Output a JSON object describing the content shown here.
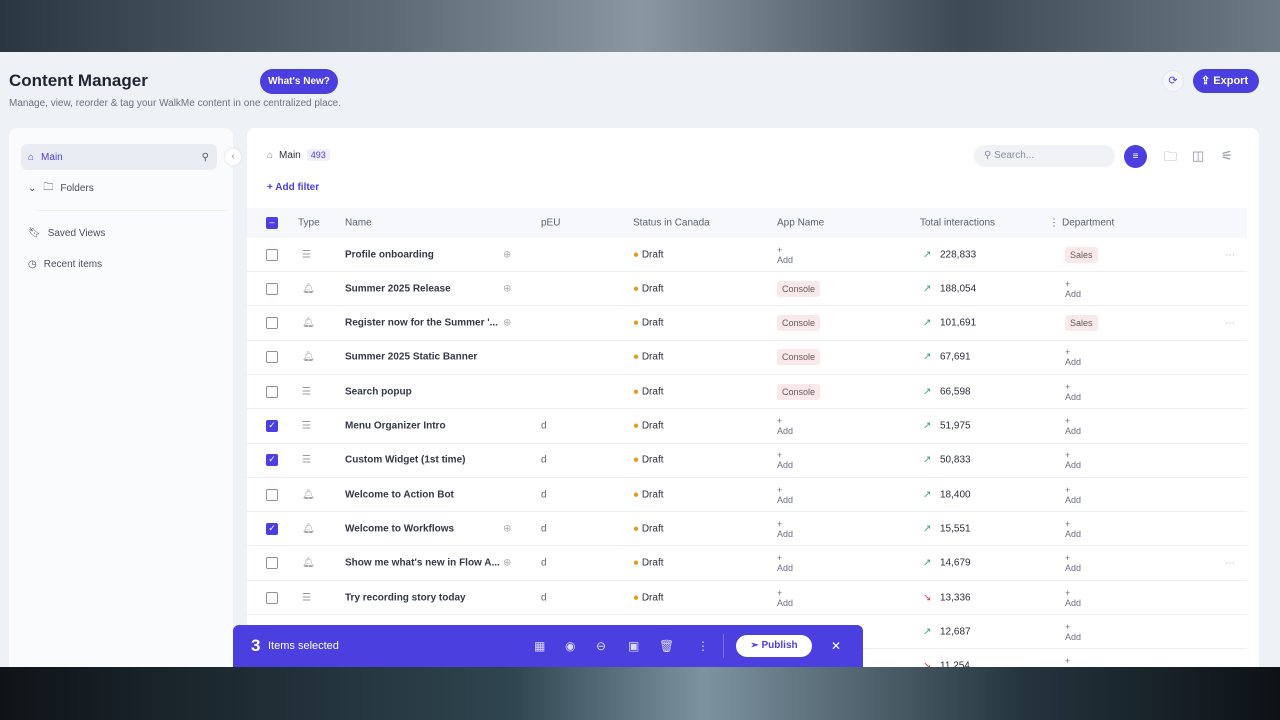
{
  "header": {
    "title": "Content Manager",
    "subtitle": "Manage, view, reorder & tag your WalkMe content in one centralized place.",
    "whats_new": "What's New?",
    "export": "Export"
  },
  "sidebar": {
    "main": "Main",
    "folders": "Folders",
    "saved_views": "Saved Views",
    "recent_items": "Recent items"
  },
  "panel": {
    "breadcrumb": "Main",
    "count": "493",
    "add_filter": "Add filter",
    "search_placeholder": "Search..."
  },
  "columns": {
    "type": "Type",
    "name": "Name",
    "peu": "pEU",
    "status": "Status in Canada",
    "app": "App Name",
    "total": "Total interactions",
    "dept": "Department"
  },
  "rows": [
    {
      "checked": false,
      "type": "flow",
      "name": "Profile onboarding",
      "peu": "",
      "status": "Draft",
      "app": "+ Add",
      "trend": "up",
      "total": "228,833",
      "dept": "Sales",
      "menu": "···"
    },
    {
      "checked": false,
      "type": "announcement",
      "name": "Summer 2025 Release",
      "peu": "",
      "status": "Draft",
      "app": "Console",
      "trend": "up",
      "total": "188,054",
      "dept": "+ Add",
      "menu": ""
    },
    {
      "checked": false,
      "type": "announcement",
      "name": "Register now for the Summer '...",
      "peu": "",
      "status": "Draft",
      "app": "Console",
      "trend": "up",
      "total": "101,691",
      "dept": "Sales",
      "menu": "···"
    },
    {
      "checked": false,
      "type": "announcement",
      "name": "Summer 2025 Static Banner",
      "peu": "",
      "status": "Draft",
      "app": "Console",
      "trend": "up",
      "total": "67,691",
      "dept": "+ Add",
      "menu": ""
    },
    {
      "checked": false,
      "type": "flow",
      "name": "Search popup",
      "peu": "",
      "status": "Draft",
      "app": "Console",
      "trend": "up",
      "total": "66,598",
      "dept": "+ Add",
      "menu": ""
    },
    {
      "checked": true,
      "type": "flow",
      "name": "Menu Organizer Intro",
      "peu": "d",
      "status": "Draft",
      "app": "+ Add",
      "trend": "up",
      "total": "51,975",
      "dept": "+ Add",
      "menu": ""
    },
    {
      "checked": true,
      "type": "flow",
      "name": "Custom Widget (1st time)",
      "peu": "d",
      "status": "Draft",
      "app": "+ Add",
      "trend": "up",
      "total": "50,833",
      "dept": "+ Add",
      "menu": ""
    },
    {
      "checked": false,
      "type": "announcement",
      "name": "Welcome to Action Bot",
      "peu": "d",
      "status": "Draft",
      "app": "+ Add",
      "trend": "up",
      "total": "18,400",
      "dept": "+ Add",
      "menu": ""
    },
    {
      "checked": true,
      "type": "announcement",
      "name": "Welcome to Workflows",
      "peu": "d",
      "status": "Draft",
      "app": "+ Add",
      "trend": "up",
      "total": "15,551",
      "dept": "+ Add",
      "menu": ""
    },
    {
      "checked": false,
      "type": "announcement",
      "name": "Show me what's new in Flow A...",
      "peu": "d",
      "status": "Draft",
      "app": "+ Add",
      "trend": "up",
      "total": "14,679",
      "dept": "+ Add",
      "menu": "···"
    },
    {
      "checked": false,
      "type": "flow",
      "name": "Try recording story today",
      "peu": "d",
      "status": "Draft",
      "app": "+ Add",
      "trend": "down",
      "total": "13,336",
      "dept": "+ Add",
      "menu": ""
    },
    {
      "checked": false,
      "type": "flow",
      "name": "",
      "peu": "",
      "status": "",
      "app": "",
      "trend": "up",
      "total": "12,687",
      "dept": "+ Add",
      "menu": ""
    },
    {
      "checked": false,
      "type": "flow",
      "name": "",
      "peu": "",
      "status": "",
      "app": "",
      "trend": "down",
      "total": "11,254",
      "dept": "+ Add",
      "menu": ""
    }
  ],
  "selection_bar": {
    "count": "3",
    "label": "Items selected",
    "publish": "Publish"
  },
  "colors": {
    "accent": "#4b3fe0",
    "draft": "#e39a1d",
    "up": "#2fa57a",
    "down": "#d8344a"
  }
}
